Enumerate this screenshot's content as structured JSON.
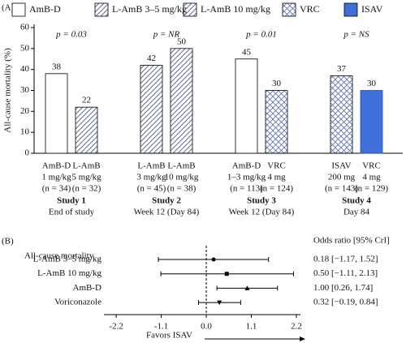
{
  "chart_data": [
    {
      "type": "bar",
      "panel_label": "(A)",
      "ylabel": "All-cause mortality (%)",
      "ylim": [
        0,
        60
      ],
      "yticks": [
        0,
        10,
        20,
        30,
        40,
        50,
        60
      ],
      "categories": [
        "Study 1",
        "Study 2",
        "Study 3",
        "Study 4"
      ],
      "subtitles": [
        "End of study",
        "Week 12 (Day 84)",
        "Week 12 (Day 84)",
        "Day 84"
      ],
      "p_values": [
        "p = 0.03",
        "p = NR",
        "p = 0.01",
        "p = NS"
      ],
      "series": [
        {
          "name": "AmB-D",
          "color": "#ffffff",
          "pattern": "none",
          "values": [
            38,
            null,
            45,
            null
          ]
        },
        {
          "name": "L-AmB 3–5 mg/kg",
          "color": "#5b6ea6",
          "pattern": "diagonal",
          "values": [
            22,
            42,
            null,
            null
          ]
        },
        {
          "name": "L-AmB 10 mg/kg",
          "color": "#5b6ea6",
          "pattern": "diagonal",
          "values": [
            null,
            50,
            null,
            null
          ]
        },
        {
          "name": "VRC",
          "color": "#5b6ea6",
          "pattern": "cross",
          "values": [
            null,
            null,
            30,
            37
          ]
        },
        {
          "name": "ISAV",
          "color": "#3f6fd8",
          "pattern": "solid",
          "values": [
            null,
            null,
            null,
            30
          ]
        }
      ],
      "bar_labels": [
        [
          [
            "AmB-D",
            "1 mg/kg",
            "(n = 34)"
          ],
          [
            "L-AmB",
            "5 mg/kg",
            "(n = 32)"
          ]
        ],
        [
          [
            "L-AmB",
            "3 mg/kg",
            "(n = 45)"
          ],
          [
            "L-AmB",
            "10 mg/kg",
            "(n = 38)"
          ]
        ],
        [
          [
            "AmB-D",
            "1–3 mg/kg",
            "(n = 113)"
          ],
          [
            "VRC",
            "4 mg",
            "(n = 124)"
          ]
        ],
        [
          [
            "ISAV",
            "200 mg",
            "(n = 143)"
          ],
          [
            "VRC",
            "4 mg",
            "(n = 129)"
          ]
        ]
      ]
    },
    {
      "type": "forest",
      "panel_label": "(B)",
      "title": "All-cause mortality",
      "column_header": "Odds ratio [95% CrI]",
      "categories": [
        "L-AmB 3–5 mg/kg",
        "L-AmB 10 mg/kg",
        "AmB-D",
        "Voriconazole"
      ],
      "values": [
        0.18,
        0.5,
        1.0,
        0.32
      ],
      "lower": [
        -1.17,
        -1.11,
        0.26,
        -0.19
      ],
      "upper": [
        1.52,
        2.13,
        1.74,
        0.84
      ],
      "value_labels": [
        "0.18 [−1.17, 1.52]",
        "0.50 [−1.11, 2.13]",
        "1.00 [0.26, 1.74]",
        "0.32 [−0.19, 0.84]"
      ],
      "markers": [
        "circle",
        "square",
        "triangle-up",
        "triangle-down"
      ],
      "xlim": [
        -2.5,
        2.3
      ],
      "xticks": [
        -2.2,
        -1.1,
        {
          "value": 0,
          "label": "0.0"
        },
        1.1,
        2.2
      ],
      "reference": 0,
      "xlabel": "Favors ISAV"
    }
  ]
}
